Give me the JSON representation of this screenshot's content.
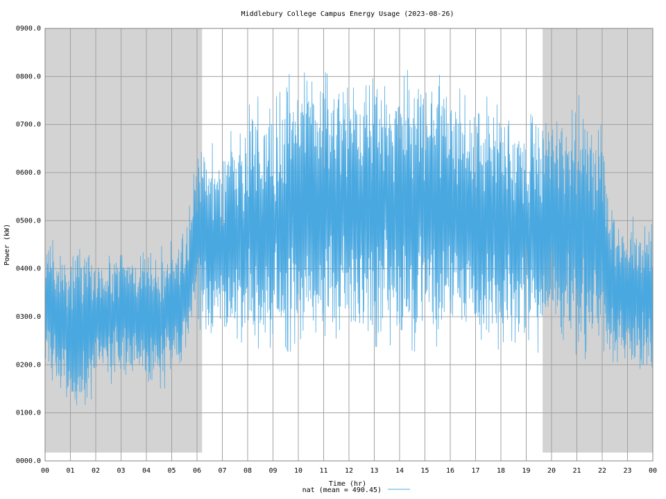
{
  "chart_data": {
    "type": "line",
    "title": "Middlebury College Campus Energy Usage (2023-08-26)",
    "xlabel": "Time (hr)",
    "ylabel": "Power (kW)",
    "xlim": [
      0,
      24
    ],
    "ylim": [
      0,
      900
    ],
    "x_tick_labels": [
      "00",
      "01",
      "02",
      "03",
      "04",
      "05",
      "06",
      "07",
      "08",
      "09",
      "10",
      "11",
      "12",
      "13",
      "14",
      "15",
      "16",
      "17",
      "18",
      "19",
      "20",
      "21",
      "22",
      "23",
      "00"
    ],
    "y_ticks": [
      0,
      100,
      200,
      300,
      400,
      500,
      600,
      700,
      800,
      900
    ],
    "y_tick_labels": [
      "0000.0",
      "0100.0",
      "0200.0",
      "0300.0",
      "0400.0",
      "0500.0",
      "0600.0",
      "0700.0",
      "0800.0",
      "0900.0"
    ],
    "grid": true,
    "legend_position": "bottom-center",
    "series": [
      {
        "name": "nat (mean = 490.45)",
        "color": "#4aa8e0",
        "mean": 490.45,
        "envelope_x_hours": [
          0,
          0.5,
          1,
          1.5,
          2,
          2.5,
          3,
          3.5,
          4,
          4.5,
          5,
          5.5,
          5.8,
          6,
          6.5,
          7,
          7.5,
          8,
          8.5,
          9,
          9.5,
          10,
          10.5,
          11,
          11.5,
          12,
          12.5,
          13,
          13.5,
          14,
          14.5,
          15,
          15.5,
          16,
          16.5,
          17,
          17.5,
          18,
          18.5,
          19,
          19.5,
          20,
          20.5,
          21,
          21.5,
          22,
          22.3,
          22.5,
          23,
          23.5,
          24
        ],
        "envelope_low_kw": [
          200,
          160,
          120,
          110,
          150,
          180,
          190,
          180,
          170,
          160,
          180,
          220,
          250,
          270,
          260,
          260,
          260,
          270,
          260,
          260,
          260,
          260,
          260,
          260,
          250,
          260,
          250,
          260,
          270,
          260,
          270,
          260,
          270,
          280,
          270,
          280,
          270,
          270,
          270,
          270,
          260,
          270,
          260,
          260,
          250,
          250,
          240,
          230,
          210,
          200,
          190
        ],
        "envelope_high_kw": [
          470,
          440,
          430,
          420,
          410,
          420,
          440,
          420,
          420,
          430,
          440,
          460,
          560,
          660,
          650,
          640,
          660,
          710,
          730,
          740,
          760,
          770,
          790,
          800,
          790,
          790,
          800,
          790,
          790,
          790,
          780,
          780,
          780,
          760,
          740,
          740,
          730,
          720,
          710,
          700,
          700,
          710,
          720,
          720,
          710,
          700,
          560,
          520,
          500,
          490,
          480
        ]
      }
    ],
    "shaded_regions_hours": [
      [
        0,
        6.2
      ],
      [
        19.65,
        24
      ]
    ],
    "shade_color": "#d3d3d3"
  }
}
